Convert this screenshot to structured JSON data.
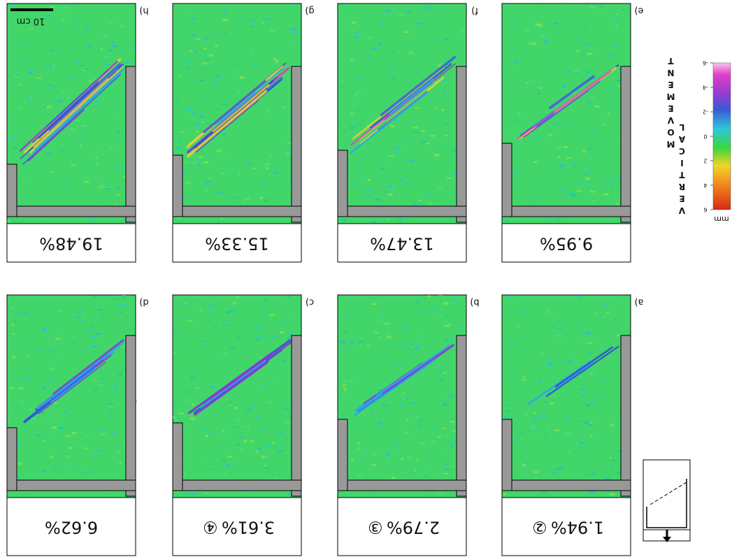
{
  "panels": [
    {
      "letter": "a)",
      "step": "②",
      "label": "1.94%"
    },
    {
      "letter": "b)",
      "step": "③",
      "label": "2.79%"
    },
    {
      "letter": "c)",
      "step": "④",
      "label": "3.61%"
    },
    {
      "letter": "d)",
      "label": "6.62%"
    },
    {
      "letter": "e)",
      "label": "9.95%"
    },
    {
      "letter": "f)",
      "label": "13.47%"
    },
    {
      "letter": "g)",
      "label": "15.33%"
    },
    {
      "letter": "h)",
      "label": "19.48%"
    }
  ],
  "scale_bar": "10 cm",
  "colorbar": {
    "title": [
      "VERTICAL",
      "MOVEMENT"
    ],
    "unit": "mm",
    "lim": [
      -6,
      6
    ],
    "ticks": [
      6,
      4,
      2,
      0,
      -2,
      -4,
      -6
    ]
  }
}
